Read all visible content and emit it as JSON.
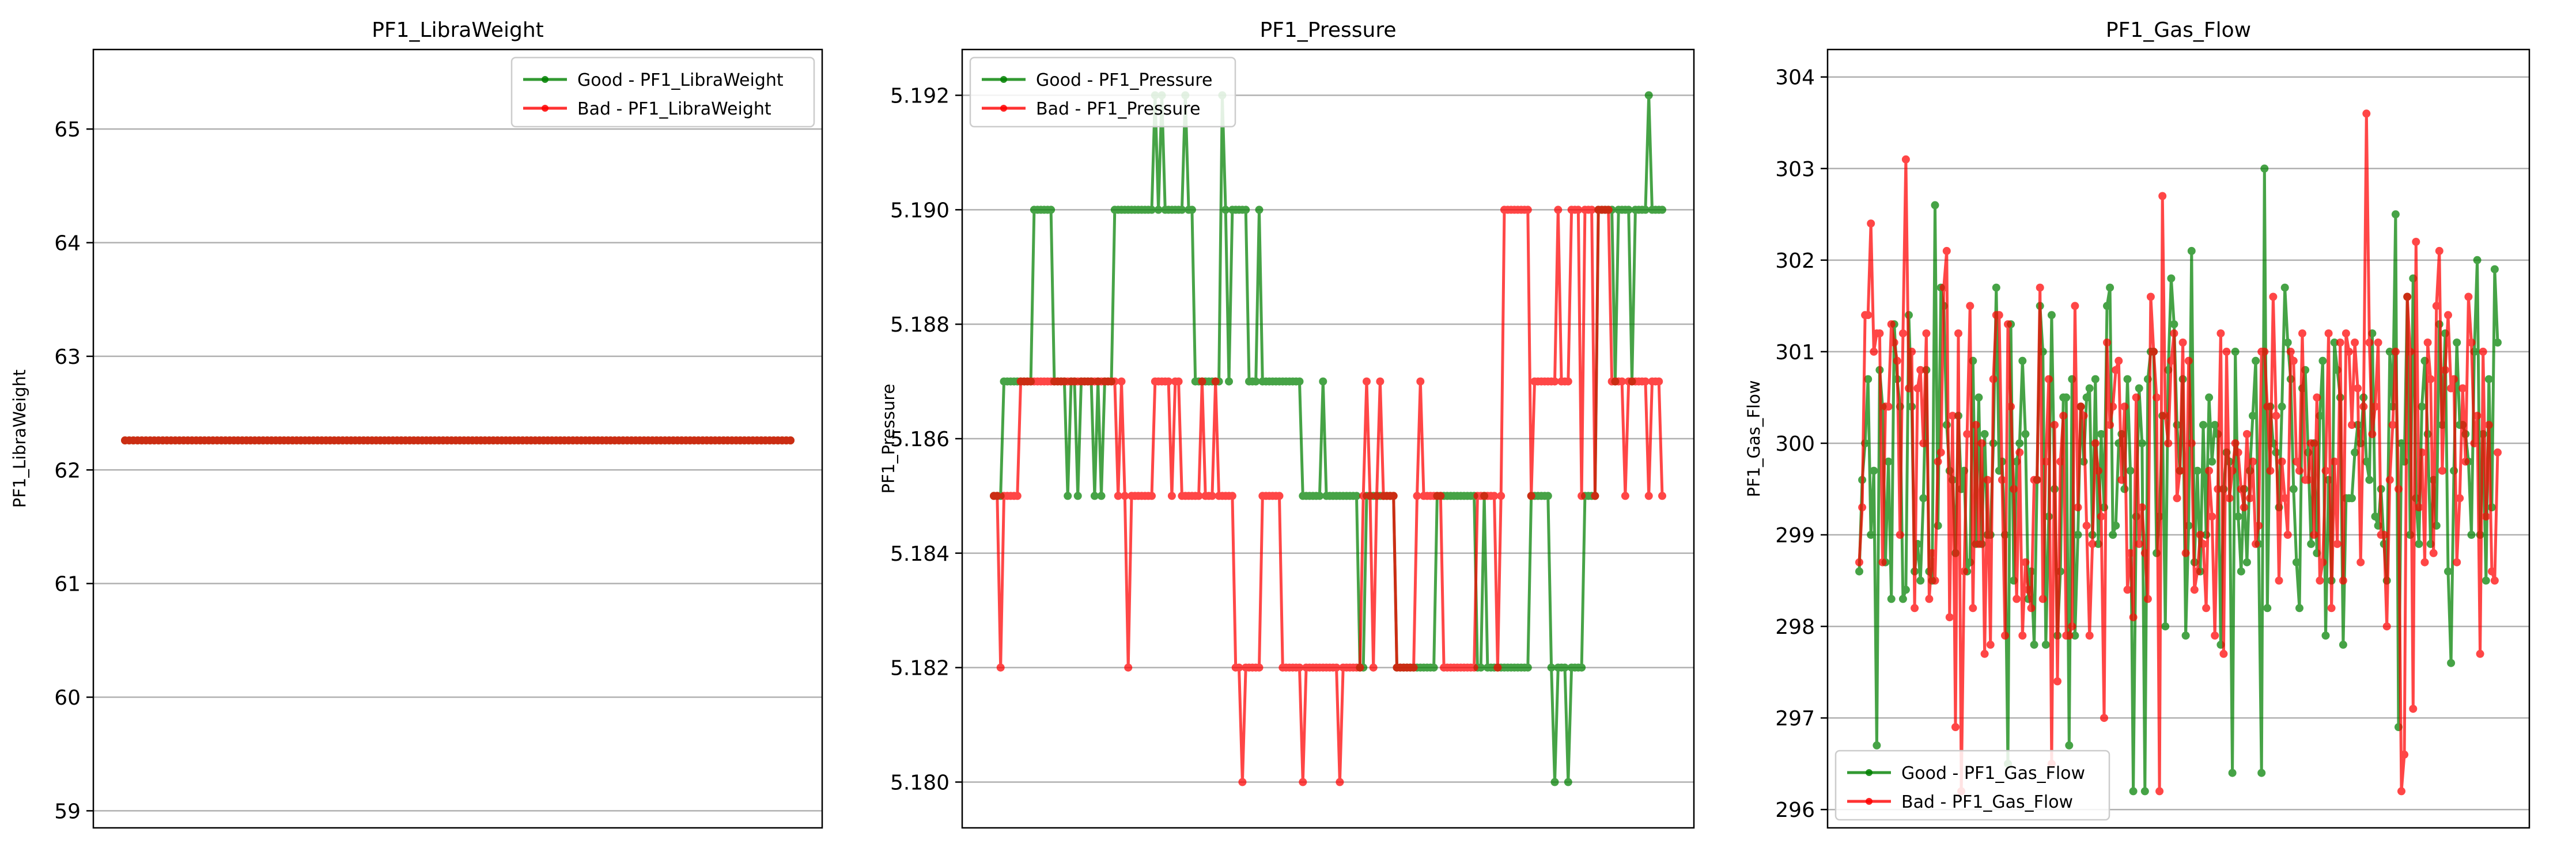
{
  "colors": {
    "good": "#008000",
    "bad": "#ff0000",
    "grid": "#b0b0b0",
    "axis": "#000000"
  },
  "chart_data": [
    {
      "type": "line",
      "title": "PF1_LibraWeight",
      "xlabel": "",
      "ylabel": "PF1_LibraWeight",
      "ylim": [
        58.85,
        65.7
      ],
      "yticks": [
        59,
        60,
        61,
        62,
        63,
        64,
        65
      ],
      "ytick_labels": [
        "59",
        "60",
        "61",
        "62",
        "63",
        "64",
        "65"
      ],
      "grid": "y",
      "legend_position": "upper-right",
      "series": [
        {
          "name": "Good - PF1_LibraWeight",
          "color": "#008000",
          "generator": "constant",
          "n": 160,
          "seed": 1,
          "value": 62.26
        },
        {
          "name": "Bad - PF1_LibraWeight",
          "color": "#ff0000",
          "generator": "constant",
          "n": 160,
          "seed": 2,
          "value": 62.26
        }
      ]
    },
    {
      "type": "line",
      "title": "PF1_Pressure",
      "xlabel": "",
      "ylabel": "PF1_Pressure",
      "ylim": [
        5.1792,
        5.1928
      ],
      "yticks": [
        5.18,
        5.182,
        5.184,
        5.186,
        5.188,
        5.19,
        5.192
      ],
      "ytick_labels": [
        "5.180",
        "5.182",
        "5.184",
        "5.186",
        "5.188",
        "5.190",
        "5.192"
      ],
      "grid": "y",
      "legend_position": "upper-left",
      "series": [
        {
          "name": "Good - PF1_Pressure",
          "color": "#008000",
          "generator": "steps",
          "n": 200,
          "seed": 11,
          "levels": [
            5.18,
            5.182,
            5.185,
            5.187,
            5.19,
            5.192
          ],
          "segments": [
            [
              0,
              0.02,
              5.185
            ],
            [
              0.02,
              0.06,
              5.187
            ],
            [
              0.06,
              0.09,
              5.19
            ],
            [
              0.09,
              0.14,
              5.187
            ],
            [
              0.14,
              0.18,
              5.187
            ],
            [
              0.18,
              0.21,
              5.19
            ],
            [
              0.21,
              0.3,
              5.19
            ],
            [
              0.3,
              0.34,
              5.187
            ],
            [
              0.34,
              0.38,
              5.19
            ],
            [
              0.38,
              0.42,
              5.187
            ],
            [
              0.42,
              0.46,
              5.187
            ],
            [
              0.46,
              0.5,
              5.185
            ],
            [
              0.5,
              0.6,
              5.185
            ],
            [
              0.6,
              0.66,
              5.182
            ],
            [
              0.66,
              0.72,
              5.185
            ],
            [
              0.72,
              0.8,
              5.182
            ],
            [
              0.8,
              0.84,
              5.185
            ],
            [
              0.84,
              0.88,
              5.182
            ],
            [
              0.88,
              0.9,
              5.185
            ],
            [
              0.9,
              0.97,
              5.19
            ],
            [
              0.97,
              1.0,
              5.19
            ]
          ],
          "spikes": [
            [
              0.06,
              5.19
            ],
            [
              0.49,
              5.187
            ],
            [
              0.55,
              5.182
            ],
            [
              0.84,
              5.18
            ],
            [
              0.93,
              5.187
            ],
            [
              0.98,
              5.192
            ]
          ]
        },
        {
          "name": "Bad - PF1_Pressure",
          "color": "#ff0000",
          "generator": "steps",
          "n": 200,
          "seed": 12,
          "levels": [
            5.18,
            5.182,
            5.185,
            5.187,
            5.19
          ],
          "segments": [
            [
              0,
              0.04,
              5.185
            ],
            [
              0.04,
              0.18,
              5.187
            ],
            [
              0.18,
              0.24,
              5.185
            ],
            [
              0.24,
              0.28,
              5.187
            ],
            [
              0.28,
              0.36,
              5.185
            ],
            [
              0.36,
              0.4,
              5.182
            ],
            [
              0.4,
              0.43,
              5.185
            ],
            [
              0.43,
              0.55,
              5.182
            ],
            [
              0.55,
              0.6,
              5.185
            ],
            [
              0.6,
              0.63,
              5.182
            ],
            [
              0.63,
              0.67,
              5.185
            ],
            [
              0.67,
              0.72,
              5.182
            ],
            [
              0.72,
              0.76,
              5.185
            ],
            [
              0.76,
              0.8,
              5.19
            ],
            [
              0.8,
              0.86,
              5.187
            ],
            [
              0.86,
              0.92,
              5.19
            ],
            [
              0.92,
              1.0,
              5.187
            ]
          ],
          "spikes": [
            [
              0.2,
              5.182
            ],
            [
              0.46,
              5.18
            ],
            [
              0.52,
              5.18
            ],
            [
              0.56,
              5.187
            ],
            [
              0.58,
              5.187
            ],
            [
              0.88,
              5.185
            ],
            [
              0.9,
              5.185
            ]
          ]
        }
      ]
    },
    {
      "type": "line",
      "title": "PF1_Gas_Flow",
      "xlabel": "",
      "ylabel": "PF1_Gas_Flow",
      "ylim": [
        295.8,
        304.3
      ],
      "yticks": [
        296,
        297,
        298,
        299,
        300,
        301,
        302,
        303,
        304
      ],
      "ytick_labels": [
        "296",
        "297",
        "298",
        "299",
        "300",
        "301",
        "302",
        "303",
        "304"
      ],
      "grid": "y",
      "legend_position": "lower-left",
      "series": [
        {
          "name": "Good - PF1_Gas_Flow",
          "color": "#008000",
          "generator": "noise",
          "n": 220,
          "seed": 21,
          "center": 299.9,
          "spread": 1.75,
          "min": 296.2,
          "max": 303.8
        },
        {
          "name": "Bad - PF1_Gas_Flow",
          "color": "#ff0000",
          "generator": "noise",
          "n": 220,
          "seed": 22,
          "center": 299.9,
          "spread": 1.75,
          "min": 296.2,
          "max": 304.0
        }
      ]
    }
  ]
}
